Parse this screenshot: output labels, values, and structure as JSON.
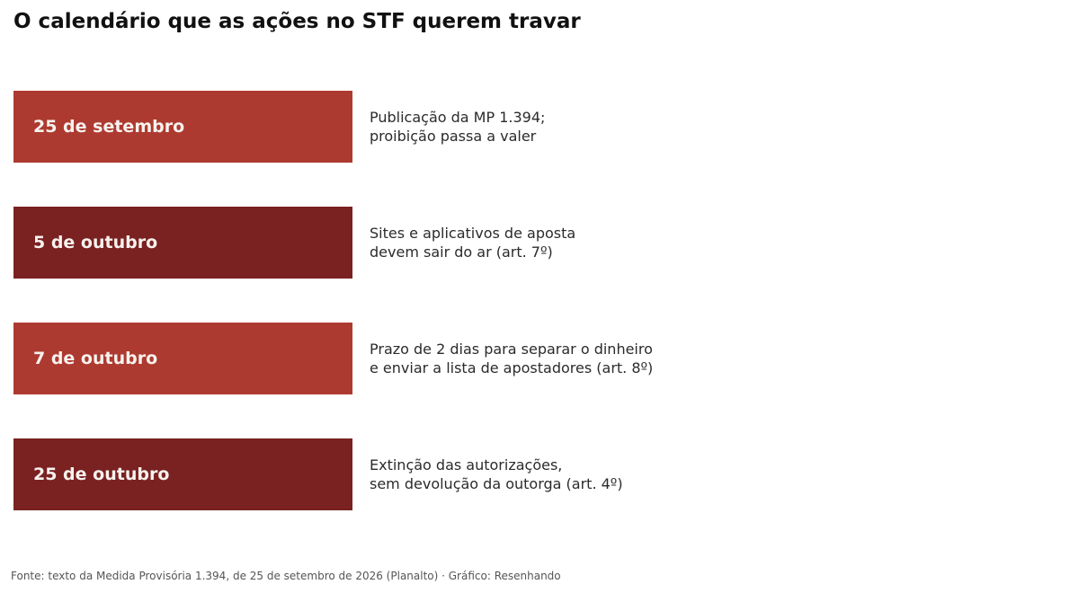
{
  "title": "O calendário que as ações no STF querem travar",
  "events": [
    {
      "date": "25 de setembro",
      "color": "#ad3a30",
      "lines": [
        "Publicação da MP 1.394;",
        "proibição passa a valer"
      ]
    },
    {
      "date": "5 de outubro",
      "color": "#7a2121",
      "lines": [
        "Sites e aplicativos de aposta",
        "devem sair do ar (art. 7º)"
      ]
    },
    {
      "date": "7 de outubro",
      "color": "#ad3a30",
      "lines": [
        "Prazo de 2 dias para separar o dinheiro",
        "e enviar a lista de apostadores (art. 8º)"
      ]
    },
    {
      "date": "25 de outubro",
      "color": "#7a2121",
      "lines": [
        "Extinção das autorizações,",
        "sem devolução da outorga (art. 4º)"
      ]
    }
  ],
  "source": "Fonte: texto da Medida Provisória 1.394, de 25 de setembro de 2026 (Planalto) · Gráfico: Resenhando"
}
